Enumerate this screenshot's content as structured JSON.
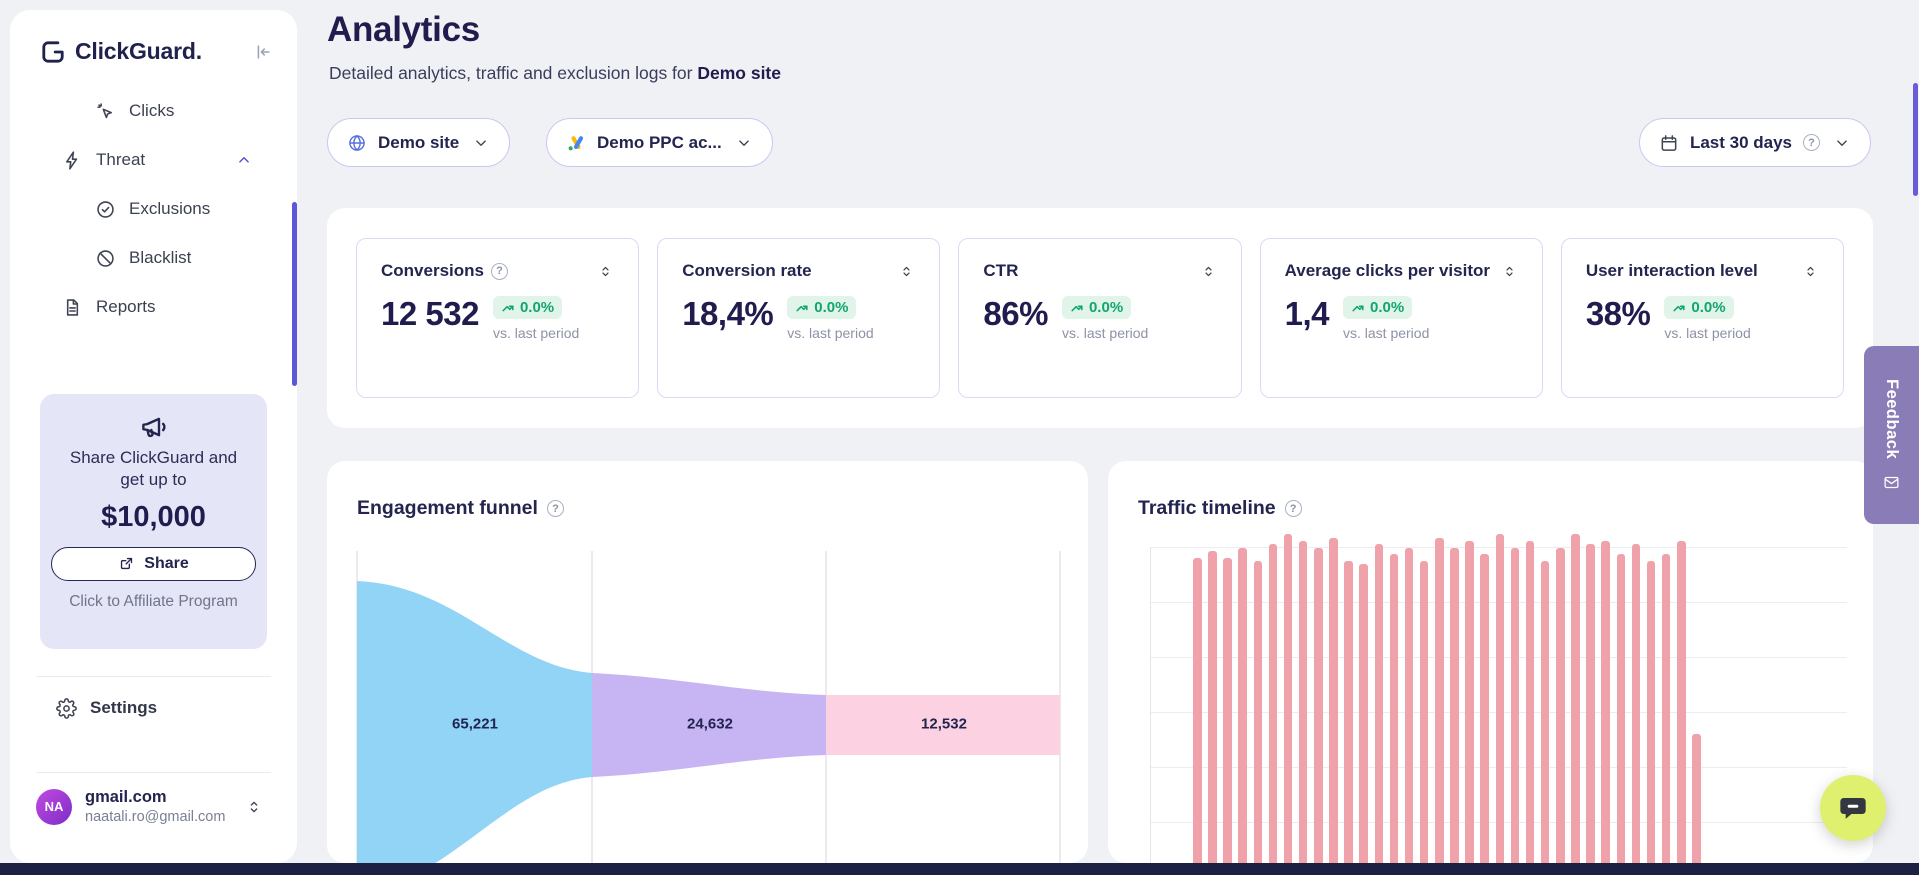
{
  "sidebar": {
    "logo_text": "ClickGuard.",
    "nav": [
      {
        "label": "Clicks"
      },
      {
        "label": "Threat"
      },
      {
        "label": "Exclusions"
      },
      {
        "label": "Blacklist"
      },
      {
        "label": "Reports"
      }
    ],
    "promo": {
      "line1": "Share ClickGuard and",
      "line2": "get up to",
      "amount": "$10,000",
      "share_label": "Share",
      "affiliate_label": "Click to Affiliate Program"
    },
    "settings_label": "Settings",
    "account": {
      "initials": "NA",
      "name": "gmail.com",
      "email": "naatali.ro@gmail.com"
    }
  },
  "header": {
    "title": "Analytics",
    "subtitle": "Detailed analytics, traffic and exclusion logs for",
    "subtitle_site": "Demo site"
  },
  "filters": {
    "site": "Demo site",
    "ppc_account": "Demo PPC ac...",
    "date_range": "Last 30 days"
  },
  "kpis": [
    {
      "label": "Conversions",
      "value": "12 532",
      "change": "0.0%",
      "caption": "vs. last period"
    },
    {
      "label": "Conversion rate",
      "value": "18,4%",
      "change": "0.0%",
      "caption": "vs. last period"
    },
    {
      "label": "CTR",
      "value": "86%",
      "change": "0.0%",
      "caption": "vs. last period"
    },
    {
      "label": "Average clicks per visitor",
      "value": "1,4",
      "change": "0.0%",
      "caption": "vs. last period"
    },
    {
      "label": "User interaction level",
      "value": "38%",
      "change": "0.0%",
      "caption": "vs. last period"
    }
  ],
  "chart_data": [
    {
      "type": "funnel",
      "title": "Engagement funnel",
      "stages": [
        {
          "label": "65,221",
          "value": 65221,
          "color": "#92d4f6"
        },
        {
          "label": "24,632",
          "value": 24632,
          "color": "#c6b4f3"
        },
        {
          "label": "12,532",
          "value": 12532,
          "color": "#fcd2e3"
        }
      ]
    },
    {
      "type": "bar",
      "title": "Traffic timeline",
      "bar_color": "#efa2aa",
      "values": [
        92,
        94,
        92,
        95,
        91,
        96,
        99,
        97,
        95,
        98,
        91,
        90,
        96,
        93,
        95,
        91,
        98,
        95,
        97,
        93,
        99,
        95,
        97,
        91,
        95,
        99,
        96,
        97,
        93,
        96,
        91,
        93,
        97,
        39
      ]
    }
  ],
  "feedback_label": "Feedback"
}
